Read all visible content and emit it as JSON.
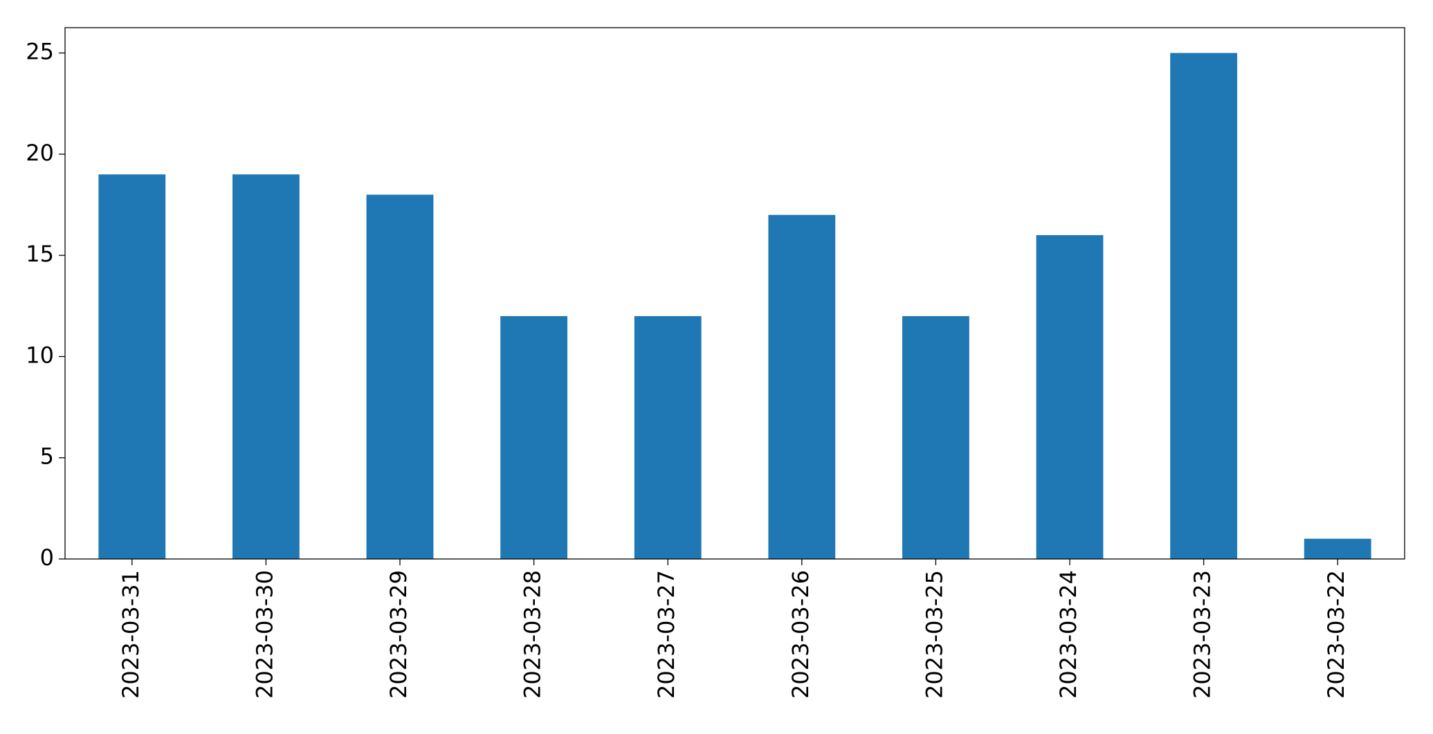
{
  "chart_data": {
    "type": "bar",
    "categories": [
      "2023-03-31",
      "2023-03-30",
      "2023-03-29",
      "2023-03-28",
      "2023-03-27",
      "2023-03-26",
      "2023-03-25",
      "2023-03-24",
      "2023-03-23",
      "2023-03-22"
    ],
    "values": [
      19,
      19,
      18,
      12,
      12,
      17,
      12,
      16,
      25,
      1
    ],
    "color": "#1f77b4",
    "ylim": [
      0,
      26.25
    ],
    "yticks": [
      0,
      5,
      10,
      15,
      20,
      25
    ],
    "grid": false
  }
}
